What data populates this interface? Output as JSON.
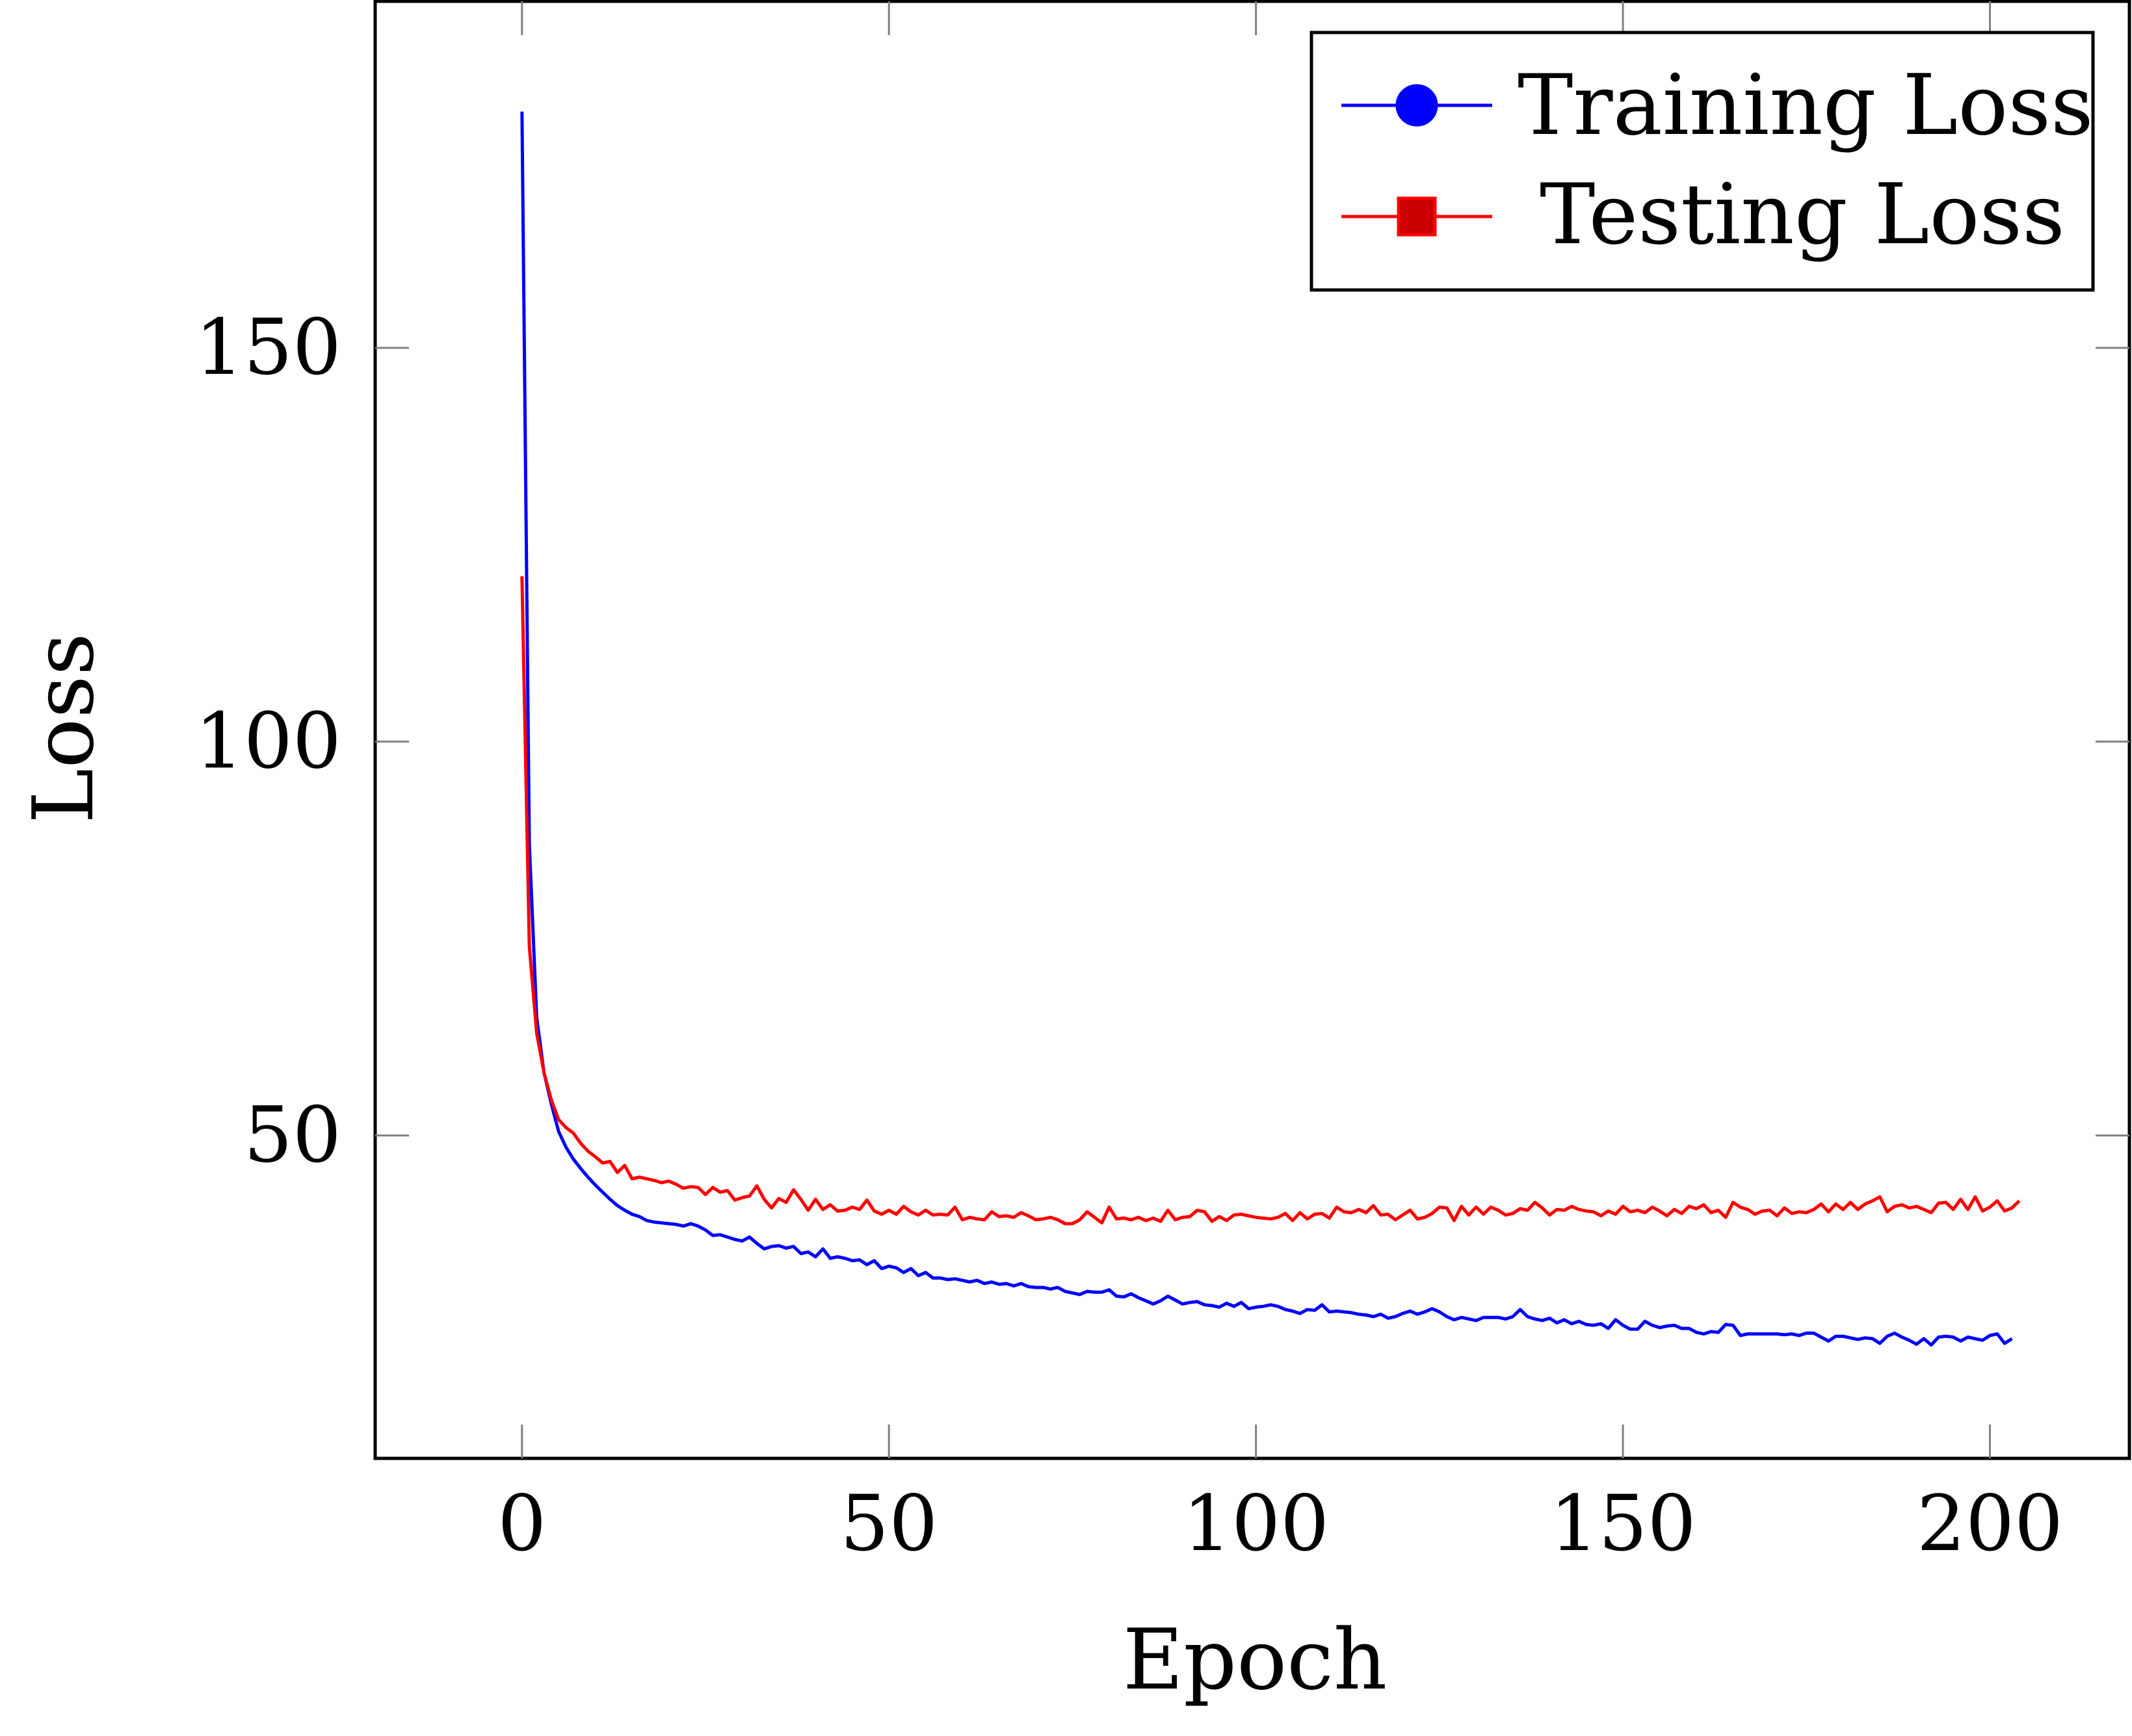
{
  "chart_data": {
    "type": "line",
    "title": "",
    "xlabel": "Epoch",
    "ylabel": "Loss",
    "xlim": [
      -20,
      219
    ],
    "ylim": [
      9,
      194
    ],
    "xticks": [
      0,
      50,
      100,
      150,
      200
    ],
    "yticks": [
      50,
      100,
      150
    ],
    "xtick_labels": [
      "0",
      "50",
      "100",
      "150",
      "200"
    ],
    "ytick_labels": [
      "50",
      "100",
      "150"
    ],
    "grid": false,
    "legend_position": "top-right",
    "series": [
      {
        "name": "Training Loss",
        "color": "#0000ff",
        "marker": "circle",
        "x_start": 0,
        "x_step": 1,
        "values": [
          180.0,
          87.0,
          65.0,
          58.0,
          54.0,
          50.5,
          48.5,
          47.0,
          45.8,
          44.7,
          43.7,
          42.8,
          41.9,
          41.1,
          40.5,
          40.0,
          39.7,
          39.2,
          39.0,
          38.9,
          38.8,
          38.7,
          38.5,
          38.8,
          38.5,
          38.0,
          37.3,
          37.4,
          37.1,
          36.8,
          36.6,
          37.1,
          36.3,
          35.6,
          35.9,
          36.0,
          35.7,
          35.9,
          35.0,
          35.2,
          34.6,
          35.6,
          34.4,
          34.6,
          34.4,
          34.1,
          34.2,
          33.6,
          34.1,
          33.1,
          33.4,
          33.2,
          32.6,
          33.1,
          32.2,
          32.6,
          31.9,
          31.9,
          31.7,
          31.8,
          31.6,
          31.4,
          31.6,
          31.2,
          31.4,
          31.1,
          31.2,
          30.9,
          31.2,
          30.8,
          30.7,
          30.7,
          30.5,
          30.7,
          30.2,
          30.0,
          29.8,
          30.2,
          30.1,
          30.1,
          30.4,
          29.6,
          29.5,
          29.9,
          29.4,
          29.0,
          28.6,
          29.0,
          29.6,
          29.1,
          28.6,
          28.8,
          28.9,
          28.5,
          28.4,
          28.2,
          28.7,
          28.3,
          28.8,
          28.0,
          28.2,
          28.3,
          28.5,
          28.3,
          27.9,
          27.7,
          27.4,
          27.9,
          27.8,
          28.5,
          27.6,
          27.7,
          27.6,
          27.5,
          27.3,
          27.2,
          27.0,
          27.3,
          26.8,
          27.0,
          27.4,
          27.7,
          27.3,
          27.6,
          28.0,
          27.6,
          27.0,
          26.6,
          26.9,
          26.7,
          26.5,
          26.9,
          26.9,
          26.9,
          26.7,
          27.0,
          27.9,
          27.0,
          26.7,
          26.5,
          26.8,
          26.2,
          26.6,
          26.1,
          26.4,
          26.0,
          25.9,
          26.1,
          25.5,
          26.6,
          25.9,
          25.4,
          25.4,
          26.4,
          25.9,
          25.6,
          25.8,
          25.9,
          25.5,
          25.5,
          25.0,
          24.8,
          25.1,
          25.0,
          26.0,
          25.9,
          24.6,
          24.8,
          24.8,
          24.8,
          24.8,
          24.8,
          24.7,
          24.8,
          24.6,
          24.9,
          24.9,
          24.4,
          23.9,
          24.5,
          24.5,
          24.3,
          24.1,
          24.3,
          24.2,
          23.6,
          24.5,
          24.9,
          24.4,
          24.0,
          23.5,
          24.2,
          23.4,
          24.4,
          24.5,
          24.4,
          23.9,
          24.4,
          24.2,
          24.0,
          24.6,
          24.8,
          23.6,
          24.2
        ]
      },
      {
        "name": "Testing Loss",
        "color": "#ff0000",
        "marker": "square",
        "x_start": 0,
        "x_step": 1,
        "values": [
          121.0,
          74.0,
          63.0,
          58.0,
          54.5,
          52.0,
          51.0,
          50.3,
          49.0,
          48.0,
          47.3,
          46.5,
          46.7,
          45.3,
          46.2,
          44.5,
          44.7,
          44.5,
          44.3,
          44.0,
          44.2,
          43.8,
          43.3,
          43.5,
          43.4,
          42.5,
          43.4,
          42.8,
          43.0,
          41.8,
          42.1,
          42.3,
          43.6,
          41.9,
          40.8,
          42.0,
          41.5,
          43.1,
          41.9,
          40.5,
          41.9,
          40.6,
          41.2,
          40.4,
          40.5,
          40.9,
          40.6,
          41.8,
          40.4,
          40.0,
          40.5,
          40.0,
          41.0,
          40.3,
          39.9,
          40.5,
          39.9,
          40.0,
          39.9,
          40.9,
          39.3,
          39.6,
          39.4,
          39.3,
          40.3,
          39.7,
          39.8,
          39.6,
          40.2,
          39.8,
          39.3,
          39.4,
          39.6,
          39.3,
          38.8,
          38.8,
          39.3,
          40.3,
          39.6,
          38.9,
          40.9,
          39.4,
          39.5,
          39.3,
          39.6,
          39.2,
          39.5,
          39.1,
          40.5,
          39.3,
          39.6,
          39.7,
          40.5,
          40.3,
          39.1,
          39.7,
          39.2,
          39.9,
          40.0,
          39.8,
          39.6,
          39.5,
          39.4,
          39.6,
          40.1,
          39.2,
          40.2,
          39.4,
          40.0,
          40.1,
          39.5,
          40.9,
          40.3,
          40.2,
          40.6,
          40.2,
          41.1,
          39.9,
          40.0,
          39.3,
          39.9,
          40.5,
          39.4,
          39.6,
          40.1,
          40.9,
          40.8,
          39.2,
          41.0,
          39.9,
          40.9,
          40.0,
          40.9,
          40.5,
          39.9,
          40.1,
          40.7,
          40.5,
          41.5,
          40.8,
          39.9,
          40.6,
          40.5,
          41.0,
          40.6,
          40.4,
          40.3,
          39.8,
          40.4,
          40.0,
          41.0,
          40.3,
          40.5,
          40.2,
          40.9,
          40.4,
          39.8,
          40.6,
          40.1,
          41.0,
          40.7,
          41.2,
          40.2,
          40.5,
          39.6,
          41.5,
          40.9,
          40.6,
          40.0,
          40.4,
          40.5,
          39.8,
          40.8,
          40.1,
          40.3,
          40.2,
          40.6,
          41.3,
          40.3,
          41.3,
          40.6,
          41.5,
          40.6,
          41.3,
          41.7,
          42.2,
          40.3,
          41.0,
          41.2,
          40.8,
          41.0,
          40.6,
          40.2,
          41.4,
          41.5,
          40.6,
          41.9,
          40.6,
          42.2,
          40.4,
          40.9,
          41.7,
          40.4,
          40.8,
          41.7
        ]
      }
    ]
  }
}
